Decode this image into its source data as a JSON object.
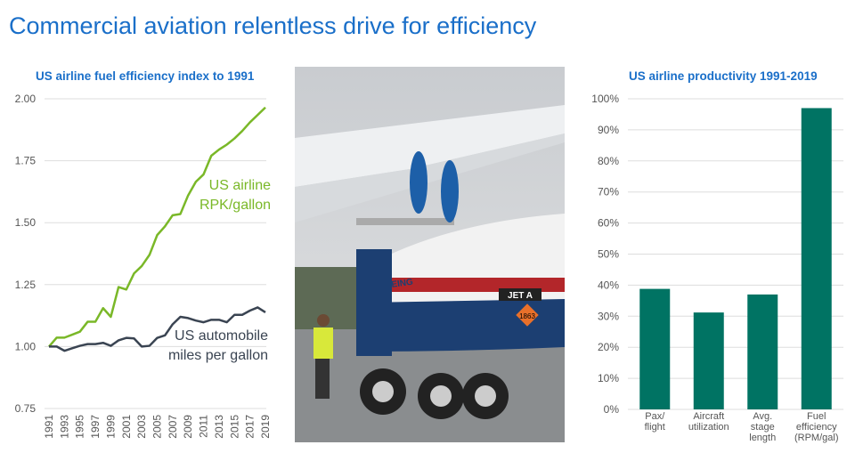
{
  "title": "Commercial aviation relentless drive for efficiency",
  "colors": {
    "title": "#1a6fc9",
    "airline": "#7ab828",
    "auto": "#3a4452",
    "bars": "#007363"
  },
  "photo": {
    "labels": [
      "BOEING",
      "JET A",
      "1863"
    ]
  },
  "chart_data": [
    {
      "type": "line",
      "title": "US airline fuel efficiency index to 1991",
      "x": [
        1991,
        1992,
        1993,
        1994,
        1995,
        1996,
        1997,
        1998,
        1999,
        2000,
        2001,
        2002,
        2003,
        2004,
        2005,
        2006,
        2007,
        2008,
        2009,
        2010,
        2011,
        2012,
        2013,
        2014,
        2015,
        2016,
        2017,
        2018,
        2019
      ],
      "xticks": [
        "1991",
        "1993",
        "1995",
        "1997",
        "1999",
        "2001",
        "2003",
        "2005",
        "2007",
        "2009",
        "2011",
        "2013",
        "2015",
        "2017",
        "2019"
      ],
      "ylim": [
        0.75,
        2.0
      ],
      "yticks": [
        "0.75",
        "1.00",
        "1.25",
        "1.50",
        "1.75",
        "2.00"
      ],
      "grid": true,
      "series": [
        {
          "name": "US airline RPK/gallon",
          "name_lines": [
            "US airline",
            "RPK/gallon"
          ],
          "color": "#7ab828",
          "values": [
            1.0,
            1.036,
            1.036,
            1.048,
            1.06,
            1.1,
            1.1,
            1.155,
            1.12,
            1.24,
            1.23,
            1.295,
            1.325,
            1.37,
            1.45,
            1.485,
            1.53,
            1.535,
            1.61,
            1.665,
            1.695,
            1.77,
            1.795,
            1.815,
            1.84,
            1.87,
            1.905,
            1.935,
            1.965
          ]
        },
        {
          "name": "US automobile miles per gallon",
          "name_lines": [
            "US automobile",
            "miles per gallon"
          ],
          "color": "#3a4452",
          "values": [
            1.0,
            1.0,
            0.983,
            0.993,
            1.003,
            1.01,
            1.01,
            1.015,
            1.003,
            1.025,
            1.035,
            1.033,
            1.0,
            1.003,
            1.035,
            1.045,
            1.09,
            1.12,
            1.115,
            1.105,
            1.098,
            1.108,
            1.108,
            1.098,
            1.128,
            1.128,
            1.145,
            1.158,
            1.138
          ]
        }
      ]
    },
    {
      "type": "bar",
      "title": "US airline productivity 1991-2019",
      "categories": [
        [
          "Pax/",
          "flight"
        ],
        [
          "Aircraft",
          "utilization"
        ],
        [
          "Avg.",
          "stage",
          "length"
        ],
        [
          "Fuel",
          "efficiency",
          "(RPM/gal)"
        ]
      ],
      "values": [
        38.8,
        31.2,
        37,
        97
      ],
      "ylim": [
        0,
        100
      ],
      "yticks": [
        "0%",
        "10%",
        "20%",
        "30%",
        "40%",
        "50%",
        "60%",
        "70%",
        "80%",
        "90%",
        "100%"
      ],
      "grid": true,
      "color": "#007363"
    }
  ]
}
